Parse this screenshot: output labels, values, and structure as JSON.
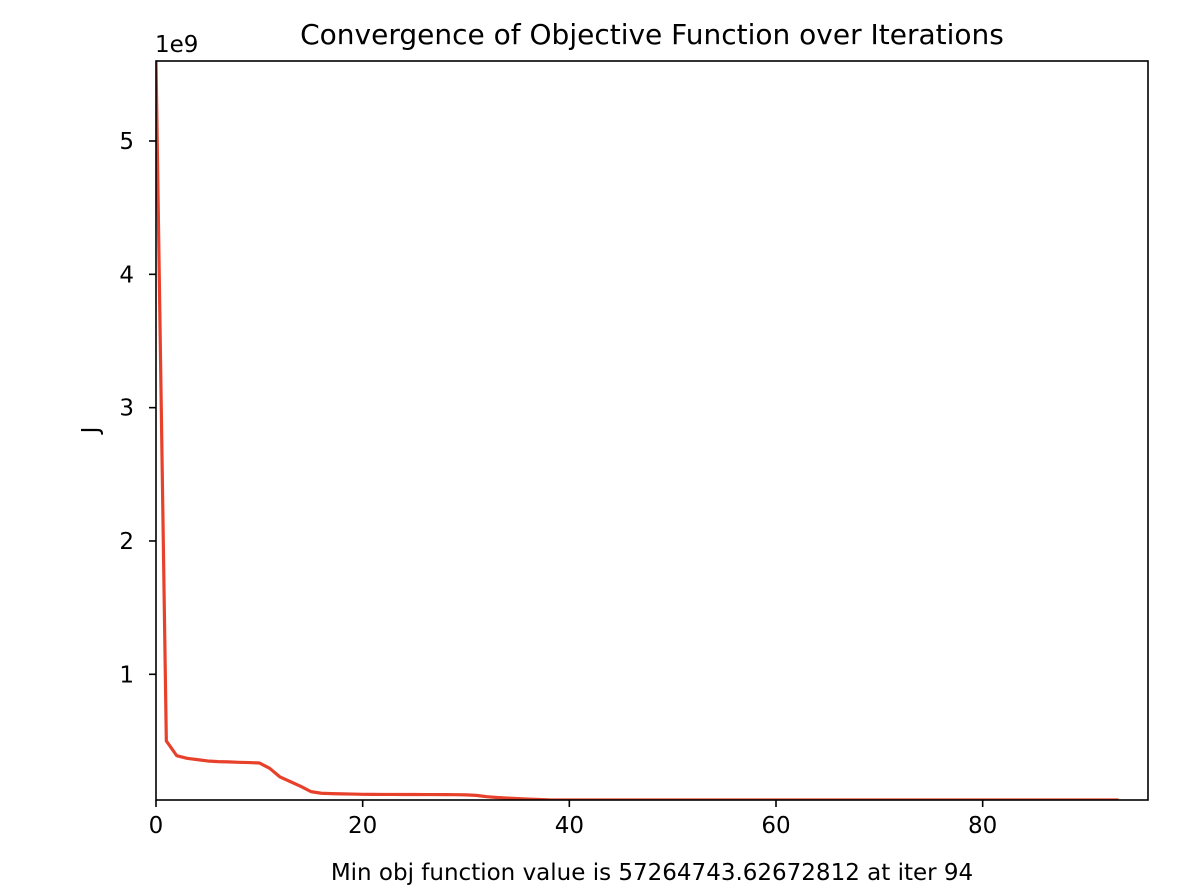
{
  "chart_data": {
    "type": "line",
    "title": "Convergence of Objective Function over Iterations",
    "xlabel": "Min obj function value is 57264743.62672812 at iter 94",
    "ylabel": "J",
    "y_offset_label": "1e9",
    "y_scale": 1000000000,
    "xlim": [
      0,
      96
    ],
    "ylim": [
      57264743.62672812,
      5600000000
    ],
    "x_ticks": [
      0,
      20,
      40,
      60,
      80
    ],
    "x_tick_labels": [
      "0",
      "20",
      "40",
      "60",
      "80"
    ],
    "y_ticks": [
      1000000000,
      2000000000,
      3000000000,
      4000000000,
      5000000000
    ],
    "y_tick_labels": [
      "1",
      "2",
      "3",
      "4",
      "5"
    ],
    "grid": false,
    "legend": "none",
    "series": [
      {
        "color": "#e8412b",
        "x": [
          0,
          1,
          2,
          3,
          4,
          5,
          6,
          7,
          8,
          9,
          10,
          11,
          12,
          13,
          14,
          15,
          16,
          17,
          18,
          19,
          20,
          21,
          22,
          23,
          24,
          25,
          26,
          27,
          28,
          29,
          30,
          31,
          32,
          33,
          34,
          35,
          36,
          37,
          38,
          39,
          40,
          41,
          42,
          43,
          44,
          45,
          46,
          47,
          48,
          49,
          50,
          51,
          52,
          53,
          54,
          55,
          56,
          57,
          58,
          59,
          60,
          61,
          62,
          63,
          64,
          65,
          66,
          67,
          68,
          69,
          70,
          71,
          72,
          73,
          74,
          75,
          76,
          77,
          78,
          79,
          80,
          81,
          82,
          83,
          84,
          85,
          86,
          87,
          88,
          89,
          90,
          91,
          92,
          93
        ],
        "values": [
          5600000000,
          500000000,
          390000000,
          370000000,
          360000000,
          350000000,
          345000000,
          343000000,
          340000000,
          338000000,
          335000000,
          295000000,
          230000000,
          195000000,
          160000000,
          120000000,
          108000000,
          105000000,
          103000000,
          102000000,
          100000000,
          99500000,
          99000000,
          98800000,
          98500000,
          98300000,
          98100000,
          97900000,
          97600000,
          97200000,
          96000000,
          92000000,
          82000000,
          76000000,
          72000000,
          68000000,
          64000000,
          61000000,
          58000000,
          57800000,
          57700000,
          57650000,
          57600000,
          57580000,
          57560000,
          57540000,
          57520000,
          57500000,
          57490000,
          57480000,
          57470000,
          57460000,
          57450000,
          57440000,
          57430000,
          57420000,
          57410000,
          57400000,
          57390000,
          57380000,
          57370000,
          57360000,
          57350000,
          57345000,
          57340000,
          57335000,
          57330000,
          57325000,
          57320000,
          57315000,
          57310000,
          57305000,
          57300000,
          57296000,
          57292000,
          57288000,
          57285000,
          57282000,
          57280000,
          57278000,
          57276000,
          57274000,
          57272000,
          57270500,
          57269000,
          57268000,
          57267200,
          57266500,
          57266000,
          57265600,
          57265300,
          57265000,
          57264800,
          57264743.62672812
        ]
      }
    ]
  }
}
